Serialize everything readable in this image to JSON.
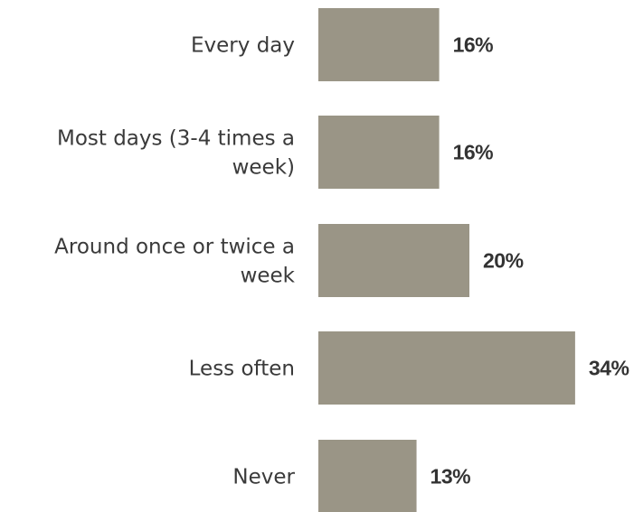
{
  "chart_data": {
    "type": "bar",
    "orientation": "horizontal",
    "categories": [
      [
        "Every day"
      ],
      [
        "Most days (3-4 times a",
        "week)"
      ],
      [
        "Around once or twice a",
        "week"
      ],
      [
        "Less often"
      ],
      [
        "Never"
      ]
    ],
    "values": [
      16,
      16,
      20,
      34,
      13
    ],
    "value_labels": [
      "16%",
      "16%",
      "20%",
      "34%",
      "13%"
    ],
    "unit": "%",
    "bar_color": "#9a9586",
    "title": "",
    "xlabel": "",
    "ylabel": "",
    "grid": false,
    "legend": "none"
  }
}
